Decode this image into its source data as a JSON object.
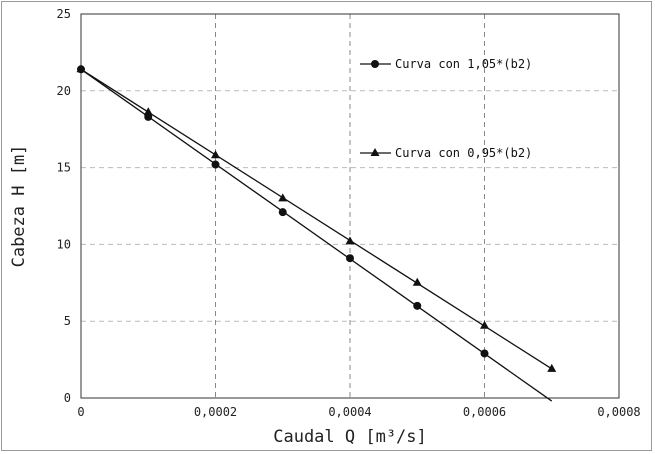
{
  "chart_data": {
    "type": "line",
    "xlabel": "Caudal Q [m³/s]",
    "ylabel": "Cabeza H [m]",
    "xlim": [
      0,
      0.0008
    ],
    "ylim": [
      0,
      25
    ],
    "x_ticks": [
      "0",
      "0,0002",
      "0,0004",
      "0,0006",
      "0,0008"
    ],
    "y_ticks": [
      "0",
      "5",
      "10",
      "15",
      "20",
      "25"
    ],
    "grid": "vertical dashed",
    "legend_placement": "right",
    "series": [
      {
        "name": "Curva con 1,05*(b2)",
        "marker": "circle",
        "x": [
          0,
          0.0001,
          0.0002,
          0.0003,
          0.0004,
          0.0005,
          0.0006
        ],
        "y": [
          21.4,
          18.3,
          15.2,
          12.1,
          9.1,
          6.0,
          2.9
        ],
        "line_x": [
          0,
          0.0007
        ],
        "line_y": [
          21.4,
          -0.2
        ]
      },
      {
        "name": "Curva con 0,95*(b2)",
        "marker": "triangle",
        "x": [
          0,
          0.0001,
          0.0002,
          0.0003,
          0.0004,
          0.0005,
          0.0006,
          0.0007
        ],
        "y": [
          21.4,
          18.6,
          15.8,
          13.0,
          10.2,
          7.5,
          4.7,
          1.9
        ],
        "line_x": [
          0,
          0.0007
        ],
        "line_y": [
          21.4,
          1.9
        ]
      }
    ]
  }
}
